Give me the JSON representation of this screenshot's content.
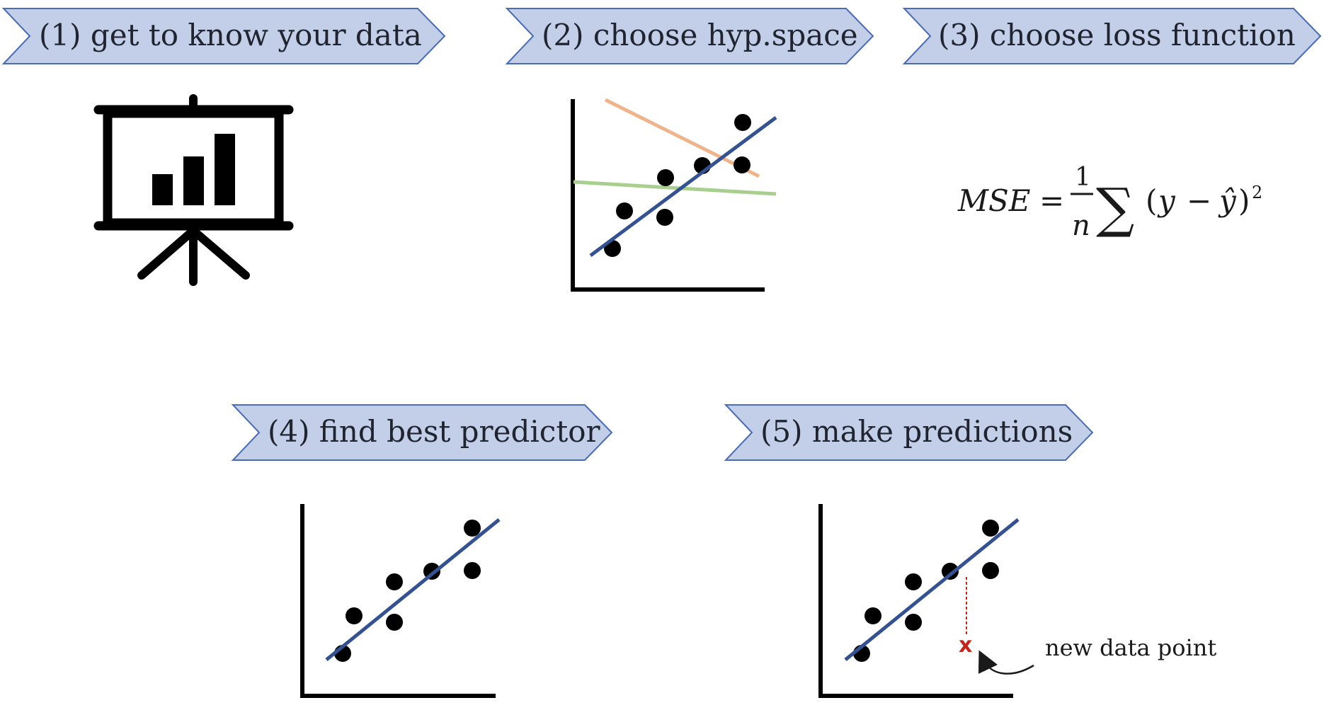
{
  "colors": {
    "banner_fill": "#c3cfe8",
    "banner_stroke": "#4a6cb0",
    "fit_line": "#34528f",
    "alt_line_orange": "#f0b48c",
    "alt_line_green": "#a9cf8f",
    "axis": "#000000",
    "point": "#000000",
    "new_point": "#c0281c"
  },
  "steps": [
    {
      "label": "(1) get to know your data",
      "icon": "presentation-chart-icon"
    },
    {
      "label": "(2) choose hyp.space",
      "icon": "scatter-plot-candidate-lines"
    },
    {
      "label": "(3) choose loss function",
      "icon": "mse-formula"
    },
    {
      "label": "(4) find best predictor",
      "icon": "scatter-plot-fitted-line"
    },
    {
      "label": "(5) make predictions",
      "icon": "scatter-plot-prediction"
    }
  ],
  "formula": {
    "lhs": "MSE",
    "equals": "=",
    "frac_num": "1",
    "frac_den": "n",
    "sum": "∑",
    "open": "(",
    "y": "y",
    "minus": "−",
    "yhat": "ŷ",
    "close": ")",
    "exp": "2"
  },
  "prediction": {
    "new_point_marker": "x",
    "annotation": "new data point"
  }
}
